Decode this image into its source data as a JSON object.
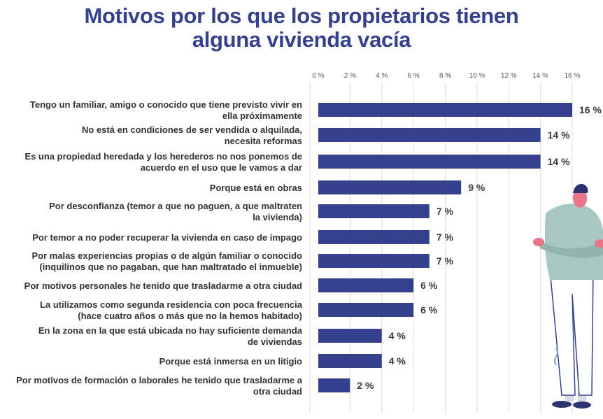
{
  "chart_data": {
    "type": "bar",
    "orientation": "horizontal",
    "title": "Motivos por los que los propietarios tienen alguna vivienda vacía",
    "title_lines": [
      "Motivos por los que los propietarios tienen",
      "alguna vivienda vacía"
    ],
    "xlim": [
      0,
      16
    ],
    "ticks": [
      "0 %",
      "2 %",
      "4 %",
      "6 %",
      "8 %",
      "10 %",
      "12 %",
      "14 %",
      "16 %"
    ],
    "tick_values": [
      0,
      2,
      4,
      6,
      8,
      10,
      12,
      14,
      16
    ],
    "grid": true,
    "bar_color": "#35418f",
    "categories": [
      [
        "Tengo un familiar, amigo o conocido que tiene previsto vivir en",
        "ella próximamente"
      ],
      [
        "No está en condiciones de ser vendida o alquilada,",
        "necesita reformas"
      ],
      [
        "Es una propiedad heredada y los herederos no nos ponemos de",
        "acuerdo en el uso que le vamos a dar"
      ],
      [
        "Porque está en obras"
      ],
      [
        "Por desconfianza (temor a que no paguen, a que maltraten",
        "la vivienda)"
      ],
      [
        "Por temor a no poder recuperar la vivienda en caso de impago"
      ],
      [
        "Por malas experiencias propias o de algún familiar o conocido",
        "(inquilinos que no pagaban, que han maltratado el inmueble)"
      ],
      [
        "Por motivos personales he tenido que trasladarme a otra ciudad"
      ],
      [
        "La utilizamos como segunda residencia con poca frecuencia",
        "(hace cuatro años o más que no la hemos habitado)"
      ],
      [
        "En la zona en la que está ubicada no hay suficiente demanda",
        "de viviendas"
      ],
      [
        "Porque está inmersa en un litigio"
      ],
      [
        "Por motivos de formación o laborales he tenido que trasladarme a",
        "otra ciudad"
      ]
    ],
    "values": [
      16,
      14,
      14,
      9,
      7,
      7,
      7,
      6,
      6,
      4,
      4,
      2
    ],
    "data_labels": [
      "16 %",
      "14 %",
      "14 %",
      "9 %",
      "7 %",
      "7 %",
      "7 %",
      "6 %",
      "6 %",
      "4 %",
      "4 %",
      "2 %"
    ]
  }
}
